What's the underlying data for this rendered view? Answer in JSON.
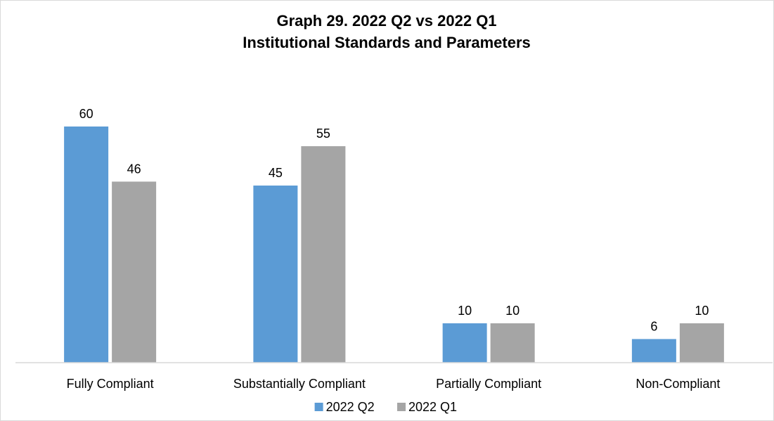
{
  "chart_data": {
    "type": "bar",
    "title": "Graph 29. 2022 Q2 vs 2022 Q1",
    "subtitle": "Institutional Standards and Parameters",
    "categories": [
      "Fully Compliant",
      "Substantially Compliant",
      "Partially Compliant",
      "Non-Compliant"
    ],
    "series": [
      {
        "name": "2022 Q2",
        "values": [
          60,
          45,
          10,
          6
        ],
        "color": "#5b9bd5"
      },
      {
        "name": "2022 Q1",
        "values": [
          46,
          55,
          10,
          10
        ],
        "color": "#a5a5a5"
      }
    ],
    "ylim": [
      0,
      70
    ],
    "grid": false,
    "legend_position": "bottom",
    "data_labels": true
  }
}
